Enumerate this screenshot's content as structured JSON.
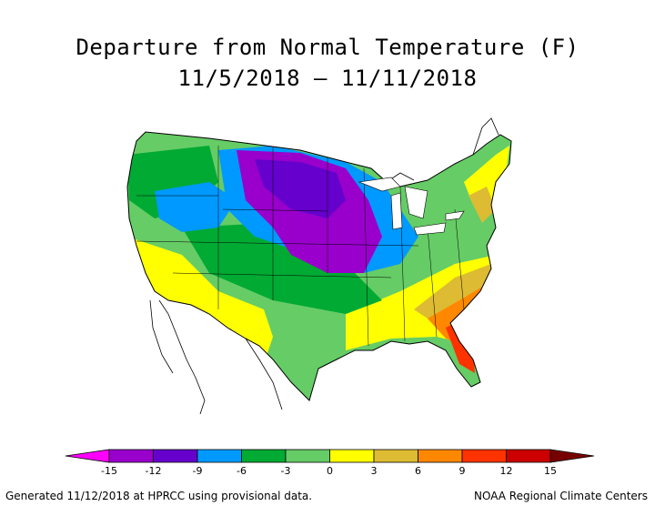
{
  "title": {
    "line1": "Departure from Normal Temperature (F)",
    "line2": "11/5/2018 – 11/11/2018"
  },
  "legend": {
    "ticks": [
      "-15",
      "-12",
      "-9",
      "-6",
      "-3",
      "0",
      "3",
      "6",
      "9",
      "12",
      "15"
    ],
    "colors": [
      "#ff00ff",
      "#9900cc",
      "#6600cc",
      "#0099ff",
      "#00aa33",
      "#66cc66",
      "#ffff00",
      "#ddbb33",
      "#ff8800",
      "#ff3300",
      "#cc0000",
      "#770000"
    ]
  },
  "footer": {
    "left": "Generated 11/12/2018 at HPRCC using provisional data.",
    "right": "NOAA Regional Climate Centers"
  }
}
